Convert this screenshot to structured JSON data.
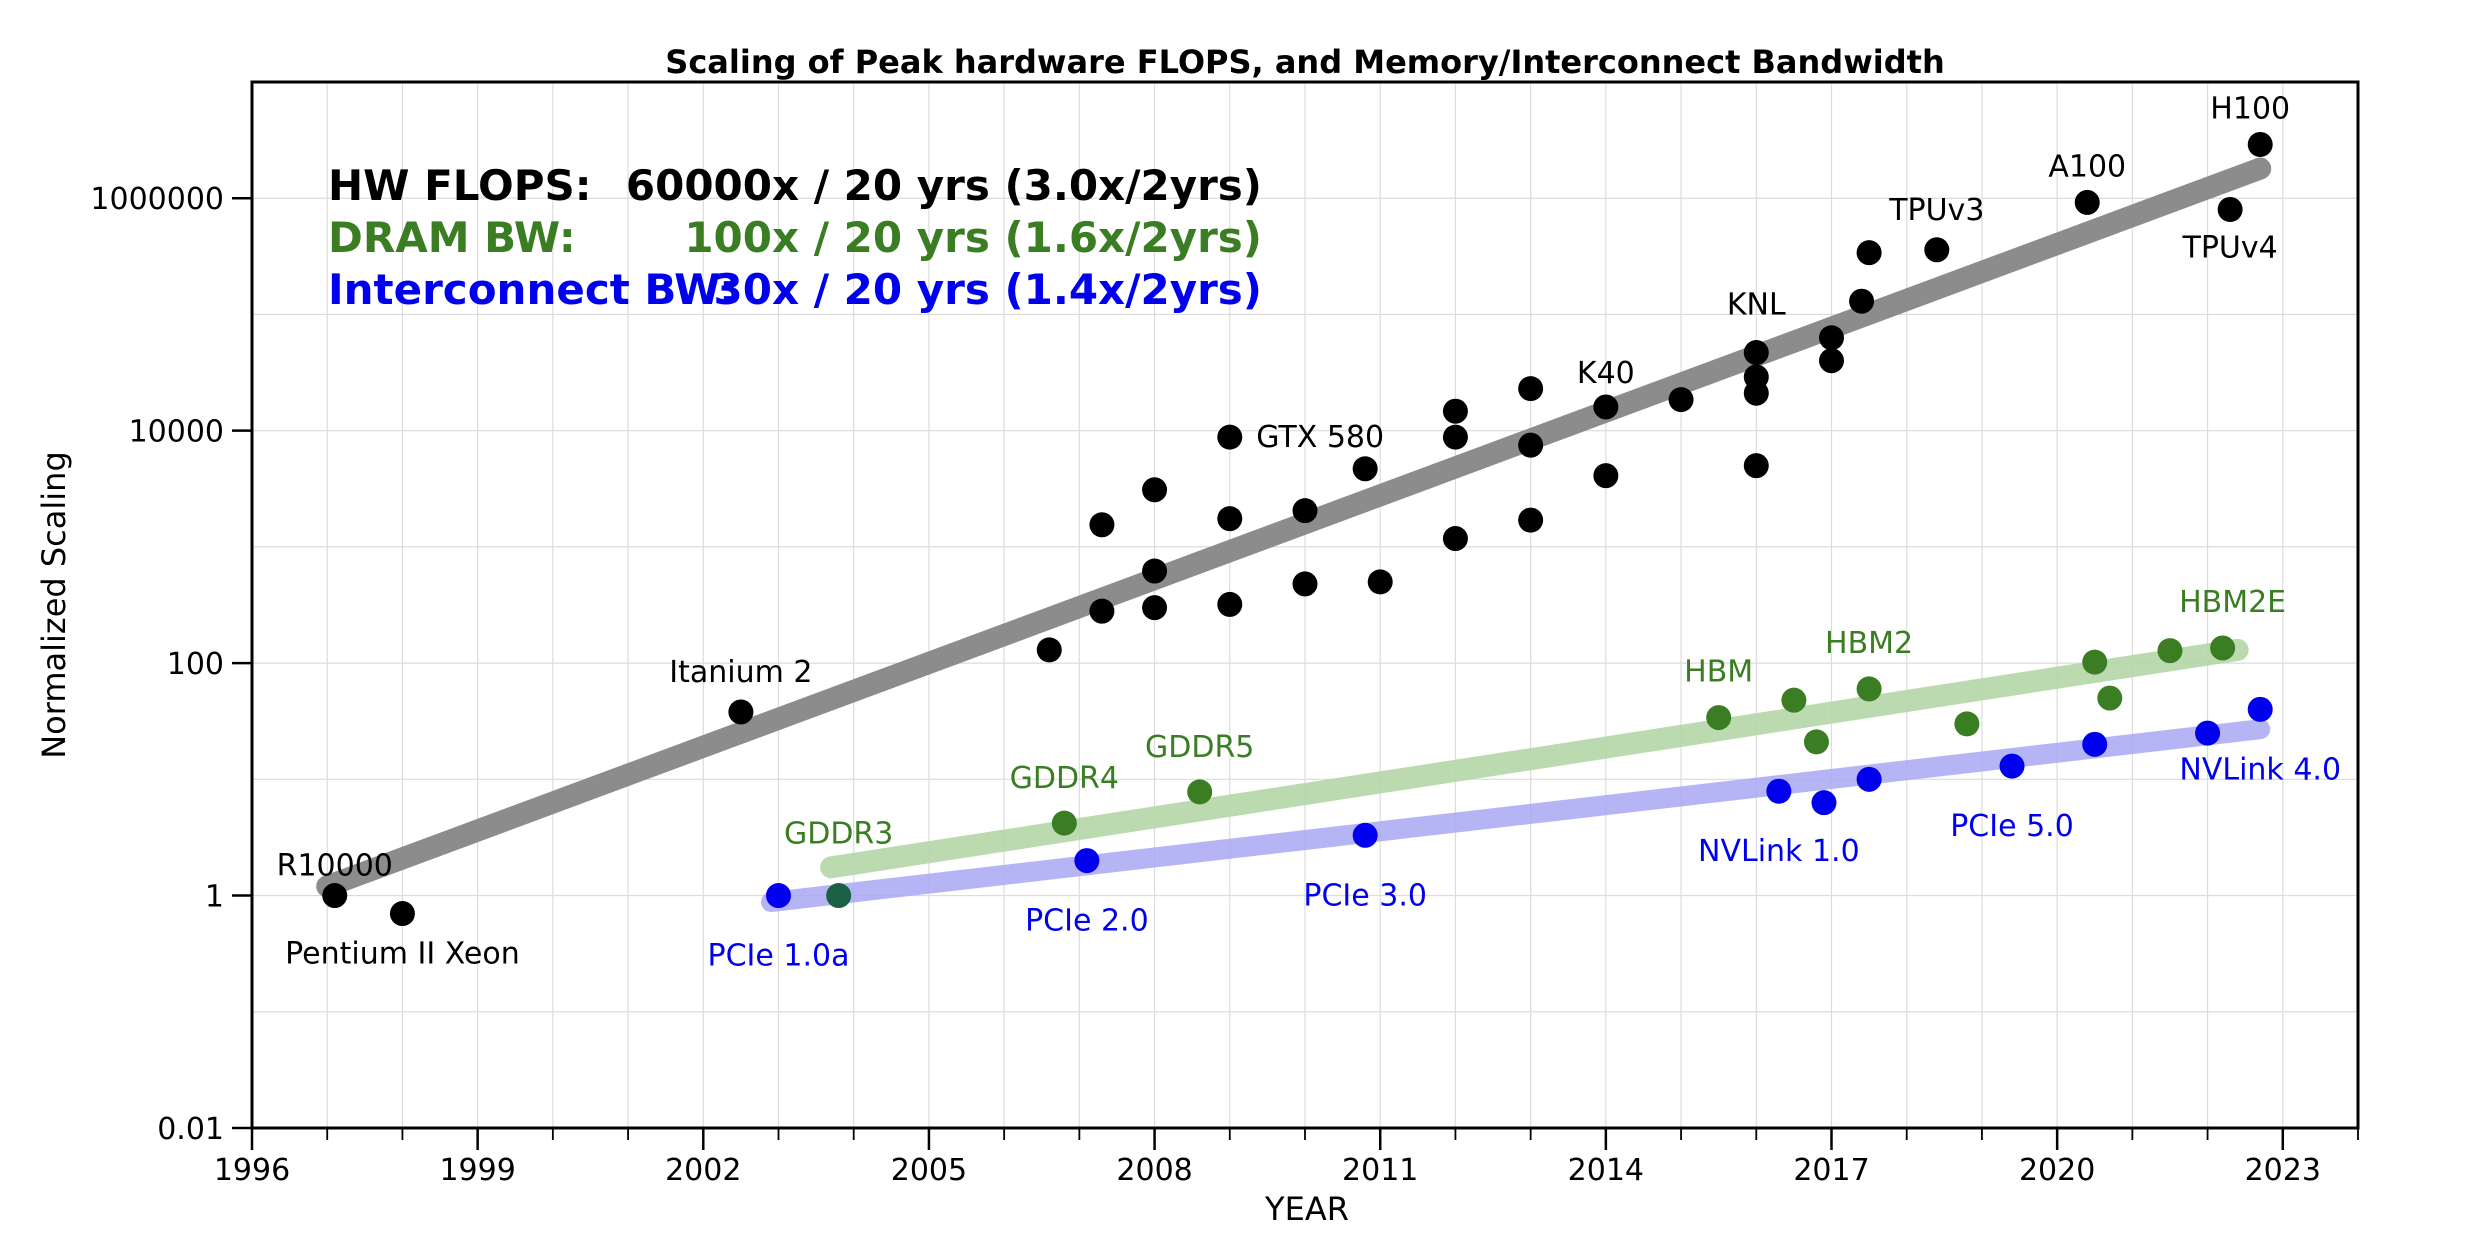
{
  "chart_data": {
    "type": "scatter",
    "title": "Scaling of Peak hardware FLOPS, and Memory/Interconnect Bandwidth",
    "xlabel": "YEAR",
    "ylabel": "Normalized Scaling",
    "yscale": "log",
    "xlim": [
      1996,
      2024
    ],
    "ylim": [
      0.01,
      10000000
    ],
    "x_ticks": [
      1996,
      1999,
      2002,
      2005,
      2008,
      2011,
      2014,
      2017,
      2020,
      2023
    ],
    "x_tick_labels": [
      "1996",
      "1999",
      "2002",
      "2005",
      "2008",
      "2011",
      "2014",
      "2017",
      "2020",
      "2023"
    ],
    "y_ticks": [
      0.01,
      1,
      100,
      10000,
      1000000
    ],
    "y_tick_labels": [
      "0.01",
      "1",
      "100",
      "10000",
      "1000000"
    ],
    "grid": true,
    "colors": {
      "flops": "#000000",
      "dram": "#3a7d22",
      "interconnect": "#0000ee",
      "flops_trend": "#8c8c8c",
      "dram_trend": "#b5d6a7",
      "interconnect_trend": "#a8a8f5",
      "overlap_point": "#1d5f44"
    },
    "legend": [
      {
        "label": "HW FLOPS:",
        "value": "60000x / 20 yrs (3.0x/2yrs)",
        "color": "#000000"
      },
      {
        "label": "DRAM BW:",
        "value": "100x / 20 yrs (1.6x/2yrs)",
        "color": "#3a7d22"
      },
      {
        "label": "Interconnect BW:",
        "value": "30x / 20 yrs (1.4x/2yrs)",
        "color": "#0000ee"
      }
    ],
    "series": [
      {
        "name": "HW FLOPS",
        "color": "#000000",
        "points": [
          {
            "x": 1997.1,
            "y": 1,
            "label": "R10000"
          },
          {
            "x": 1998.0,
            "y": 0.7,
            "label": "Pentium II Xeon"
          },
          {
            "x": 2002.5,
            "y": 38,
            "label": "Itanium 2"
          },
          {
            "x": 2006.6,
            "y": 130
          },
          {
            "x": 2007.3,
            "y": 280
          },
          {
            "x": 2007.3,
            "y": 1550
          },
          {
            "x": 2008.0,
            "y": 300
          },
          {
            "x": 2008.0,
            "y": 620
          },
          {
            "x": 2008.0,
            "y": 3100
          },
          {
            "x": 2009.0,
            "y": 320
          },
          {
            "x": 2009.0,
            "y": 1750
          },
          {
            "x": 2009.0,
            "y": 8800
          },
          {
            "x": 2010.0,
            "y": 480
          },
          {
            "x": 2010.0,
            "y": 2050
          },
          {
            "x": 2010.8,
            "y": 4700,
            "label": "GTX 580"
          },
          {
            "x": 2011.0,
            "y": 500
          },
          {
            "x": 2012.0,
            "y": 1180
          },
          {
            "x": 2012.0,
            "y": 8800
          },
          {
            "x": 2012.0,
            "y": 14700
          },
          {
            "x": 2013.0,
            "y": 1700
          },
          {
            "x": 2013.0,
            "y": 7500
          },
          {
            "x": 2013.0,
            "y": 23000
          },
          {
            "x": 2014.0,
            "y": 4100
          },
          {
            "x": 2014.0,
            "y": 16000,
            "label": "K40"
          },
          {
            "x": 2015.0,
            "y": 18500
          },
          {
            "x": 2016.0,
            "y": 5000
          },
          {
            "x": 2016.0,
            "y": 21000
          },
          {
            "x": 2016.0,
            "y": 29000
          },
          {
            "x": 2016.0,
            "y": 47000,
            "label": "KNL"
          },
          {
            "x": 2017.0,
            "y": 40000
          },
          {
            "x": 2017.0,
            "y": 63000
          },
          {
            "x": 2017.4,
            "y": 130000
          },
          {
            "x": 2017.5,
            "y": 340000
          },
          {
            "x": 2018.4,
            "y": 360000,
            "label": "TPUv3"
          },
          {
            "x": 2020.4,
            "y": 920000,
            "label": "A100"
          },
          {
            "x": 2022.3,
            "y": 800000,
            "label": "TPUv4"
          },
          {
            "x": 2022.7,
            "y": 2900000,
            "label": "H100"
          }
        ]
      },
      {
        "name": "DRAM BW",
        "color": "#3a7d22",
        "points": [
          {
            "x": 2003.8,
            "y": 1,
            "label": "GDDR3"
          },
          {
            "x": 2006.8,
            "y": 4.2,
            "label": "GDDR4"
          },
          {
            "x": 2008.6,
            "y": 7.8,
            "label": "GDDR5"
          },
          {
            "x": 2015.5,
            "y": 34,
            "label": "HBM"
          },
          {
            "x": 2016.5,
            "y": 48
          },
          {
            "x": 2016.8,
            "y": 21
          },
          {
            "x": 2017.5,
            "y": 60,
            "label": "HBM2"
          },
          {
            "x": 2018.8,
            "y": 30
          },
          {
            "x": 2020.5,
            "y": 102
          },
          {
            "x": 2020.7,
            "y": 50
          },
          {
            "x": 2021.5,
            "y": 128
          },
          {
            "x": 2022.2,
            "y": 135,
            "label": "HBM2E"
          }
        ]
      },
      {
        "name": "Interconnect BW",
        "color": "#0000ee",
        "points": [
          {
            "x": 2003.0,
            "y": 1,
            "label": "PCIe 1.0a"
          },
          {
            "x": 2007.1,
            "y": 2.0,
            "label": "PCIe 2.0"
          },
          {
            "x": 2010.8,
            "y": 3.3,
            "label": "PCIe 3.0"
          },
          {
            "x": 2016.3,
            "y": 7.9,
            "label": "NVLink 1.0"
          },
          {
            "x": 2016.9,
            "y": 6.3
          },
          {
            "x": 2017.5,
            "y": 10
          },
          {
            "x": 2019.4,
            "y": 13,
            "label": "PCIe 5.0"
          },
          {
            "x": 2020.5,
            "y": 20
          },
          {
            "x": 2022.0,
            "y": 25
          },
          {
            "x": 2022.7,
            "y": 40,
            "label": "NVLink 4.0"
          }
        ]
      }
    ],
    "trend_lines": [
      {
        "name": "HW FLOPS trend",
        "x": [
          1997.0,
          2022.7
        ],
        "y": [
          1.2,
          1800000
        ]
      },
      {
        "name": "DRAM BW trend",
        "x": [
          2003.7,
          2022.4
        ],
        "y": [
          1.75,
          130
        ]
      },
      {
        "name": "Interconnect BW trend",
        "x": [
          2002.9,
          2022.7
        ],
        "y": [
          0.88,
          27
        ]
      }
    ]
  }
}
